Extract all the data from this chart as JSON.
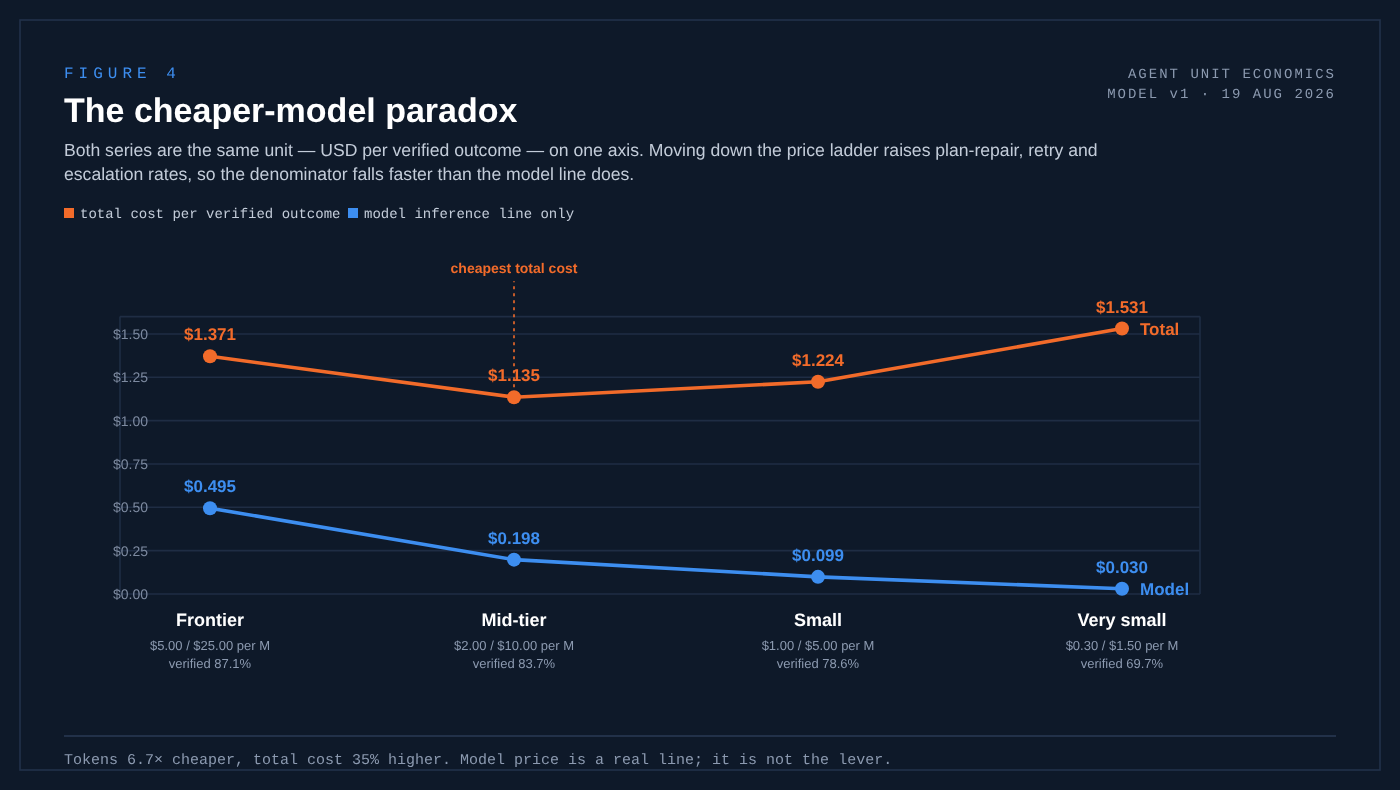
{
  "chart_data": {
    "type": "line",
    "title": "The cheaper-model paradox",
    "subtitle": "Both series are the same unit — USD per verified outcome — on one axis. Moving down the price ladder raises plan-repair, retry and escalation rates, so the denominator falls faster than the model line does.",
    "categories": [
      "Frontier\n$5.00 / $25.00 per M\nverified 87.1%",
      "Mid-tier\n$2.00 / $10.00 per M\nverified 83.7%",
      "Small\n$1.00 / $5.00 per M\nverified 78.6%",
      "Very small\n$0.30 / $1.50 per M\nverified 69.7%"
    ],
    "series": [
      {
        "name": "total cost per verified outcome",
        "color": "#f26b2a",
        "values": [
          1.371,
          1.135,
          1.224,
          1.531
        ],
        "value_labels": [
          "$1.371",
          "$1.135",
          "$1.224",
          "$1.531"
        ]
      },
      {
        "name": "model inference line only",
        "color": "#3d8ef0",
        "values": [
          0.495,
          0.198,
          0.099,
          0.03
        ],
        "value_labels": [
          "$0.495",
          "$0.198",
          "$0.099",
          "$0.030"
        ]
      }
    ],
    "ylim": [
      0,
      1.6
    ],
    "yticks": [
      {
        "value": 0,
        "label": "$0.00"
      },
      {
        "value": 0.25,
        "label": "$0.25"
      },
      {
        "value": 0.5,
        "label": "$0.50"
      },
      {
        "value": 0.75,
        "label": "$0.75"
      },
      {
        "value": 1,
        "label": "$1.00"
      },
      {
        "value": 1.25,
        "label": "$1.25"
      },
      {
        "value": 1.5,
        "label": "$1.50"
      }
    ],
    "grid": "y",
    "legend": "top left",
    "marker": "circle",
    "line_style": "solid",
    "annotations": [
      "FIGURE 4",
      "AGENT UNIT ECONOMICS",
      "MODEL v1 · 19 AUG 2026",
      {
        "text": "cheapest total cost",
        "x": "Mid-tier\n$2.00 / $10.00 per M\nverified 83.7%",
        "y": 1.135
      },
      {
        "text": "Total",
        "x": "Very small\n$0.30 / $1.50 per M\nverified 69.7%",
        "y": 1.531
      },
      {
        "text": "Model",
        "x": "Very small\n$0.30 / $1.50 per M\nverified 69.7%",
        "y": 0.03
      },
      "Tokens 6.7× cheaper, total cost 35% higher. Model price is a real line; it is not the lever."
    ]
  }
}
